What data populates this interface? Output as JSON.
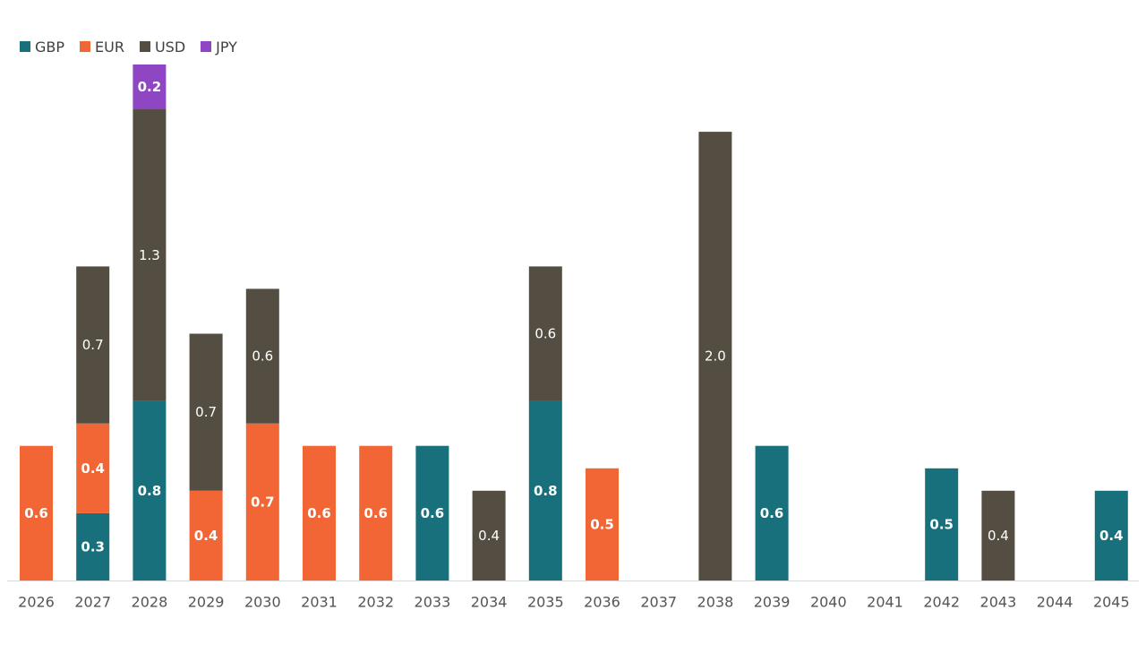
{
  "chart_data": {
    "type": "bar",
    "stacked": true,
    "title": "",
    "xlabel": "",
    "ylabel": "",
    "ylim": [
      0,
      2.2
    ],
    "grid": false,
    "legend_position": "top-left",
    "categories": [
      "2026",
      "2027",
      "2028",
      "2029",
      "2030",
      "2031",
      "2032",
      "2033",
      "2034",
      "2035",
      "2036",
      "2037",
      "2038",
      "2039",
      "2040",
      "2041",
      "2042",
      "2043",
      "2044",
      "2045"
    ],
    "series": [
      {
        "name": "GBP",
        "color": "#17707b",
        "label_color": "#ffffff",
        "label_bold": true,
        "values": [
          0,
          0.3,
          0.8,
          0,
          0,
          0,
          0,
          0.6,
          0,
          0.8,
          0,
          0,
          0,
          0.6,
          0,
          0,
          0.5,
          0,
          0,
          0.4
        ]
      },
      {
        "name": "EUR",
        "color": "#f26535",
        "label_color": "#ffffff",
        "label_bold": true,
        "values": [
          0.6,
          0.4,
          0,
          0.4,
          0.7,
          0.6,
          0.6,
          0,
          0,
          0,
          0.5,
          0,
          0,
          0,
          0,
          0,
          0,
          0,
          0,
          0
        ]
      },
      {
        "name": "USD",
        "color": "#544e42",
        "label_color": "#ffffff",
        "label_bold": false,
        "values": [
          0,
          0.7,
          1.3,
          0.7,
          0.6,
          0,
          0,
          0,
          0.4,
          0.6,
          0,
          0,
          2.0,
          0,
          0,
          0,
          0,
          0.4,
          0,
          0
        ]
      },
      {
        "name": "JPY",
        "color": "#8f46c2",
        "label_color": "#ffffff",
        "label_bold": true,
        "values": [
          0,
          0,
          0.2,
          0,
          0,
          0,
          0,
          0,
          0,
          0,
          0,
          0,
          0,
          0,
          0,
          0,
          0,
          0,
          0,
          0
        ]
      }
    ]
  }
}
